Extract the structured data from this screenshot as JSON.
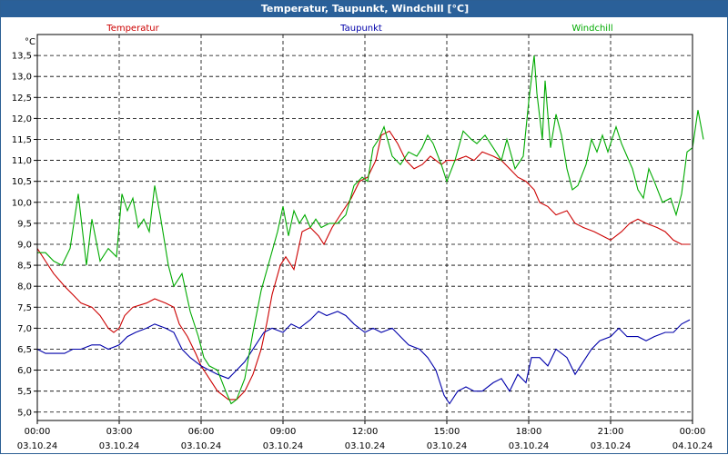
{
  "window": {
    "title": "Temperatur, Taupunkt, Windchill [°C]"
  },
  "colors": {
    "temperatur": "#cc0000",
    "taupunkt": "#0000aa",
    "windchill": "#00aa00",
    "titlebar": "#2a6099"
  },
  "chart_data": {
    "type": "line",
    "title": "Temperatur, Taupunkt, Windchill [°C]",
    "ylabel": "°C",
    "xlim": [
      0,
      24
    ],
    "ylim": [
      4.8,
      14.0
    ],
    "grid": true,
    "legend_position": "top",
    "y_ticks": [
      {
        "v": 5.0,
        "label": "5,0"
      },
      {
        "v": 5.5,
        "label": "5,5"
      },
      {
        "v": 6.0,
        "label": "6,0"
      },
      {
        "v": 6.5,
        "label": "6,5"
      },
      {
        "v": 7.0,
        "label": "7,0"
      },
      {
        "v": 7.5,
        "label": "7,5"
      },
      {
        "v": 8.0,
        "label": "8,0"
      },
      {
        "v": 8.5,
        "label": "8,5"
      },
      {
        "v": 9.0,
        "label": "9,0"
      },
      {
        "v": 9.5,
        "label": "9,5"
      },
      {
        "v": 10.0,
        "label": "10,0"
      },
      {
        "v": 10.5,
        "label": "10,5"
      },
      {
        "v": 11.0,
        "label": "11,0"
      },
      {
        "v": 11.5,
        "label": "11,5"
      },
      {
        "v": 12.0,
        "label": "12,0"
      },
      {
        "v": 12.5,
        "label": "12,5"
      },
      {
        "v": 13.0,
        "label": "13,0"
      },
      {
        "v": 13.5,
        "label": "13,5"
      }
    ],
    "x_ticks": [
      {
        "v": 0,
        "time": "00:00",
        "date": "03.10.24"
      },
      {
        "v": 3,
        "time": "03:00",
        "date": "03.10.24"
      },
      {
        "v": 6,
        "time": "06:00",
        "date": "03.10.24"
      },
      {
        "v": 9,
        "time": "09:00",
        "date": "03.10.24"
      },
      {
        "v": 12,
        "time": "12:00",
        "date": "03.10.24"
      },
      {
        "v": 15,
        "time": "15:00",
        "date": "03.10.24"
      },
      {
        "v": 18,
        "time": "18:00",
        "date": "03.10.24"
      },
      {
        "v": 21,
        "time": "21:00",
        "date": "03.10.24"
      },
      {
        "v": 24,
        "time": "00:00",
        "date": "04.10.24"
      }
    ],
    "series": [
      {
        "name": "Temperatur",
        "color": "#cc0000",
        "points": [
          [
            0,
            8.9
          ],
          [
            0.3,
            8.6
          ],
          [
            0.6,
            8.3
          ],
          [
            1.0,
            8.0
          ],
          [
            1.3,
            7.8
          ],
          [
            1.6,
            7.6
          ],
          [
            2.0,
            7.5
          ],
          [
            2.3,
            7.3
          ],
          [
            2.6,
            7.0
          ],
          [
            2.8,
            6.9
          ],
          [
            3.0,
            7.0
          ],
          [
            3.2,
            7.3
          ],
          [
            3.5,
            7.5
          ],
          [
            4.0,
            7.6
          ],
          [
            4.3,
            7.7
          ],
          [
            4.7,
            7.6
          ],
          [
            5.0,
            7.5
          ],
          [
            5.2,
            7.1
          ],
          [
            5.5,
            6.8
          ],
          [
            5.8,
            6.4
          ],
          [
            6.0,
            6.1
          ],
          [
            6.3,
            5.8
          ],
          [
            6.6,
            5.5
          ],
          [
            7.0,
            5.3
          ],
          [
            7.3,
            5.3
          ],
          [
            7.6,
            5.5
          ],
          [
            7.9,
            5.9
          ],
          [
            8.2,
            6.5
          ],
          [
            8.4,
            7.1
          ],
          [
            8.6,
            7.8
          ],
          [
            8.9,
            8.5
          ],
          [
            9.1,
            8.7
          ],
          [
            9.4,
            8.4
          ],
          [
            9.7,
            9.3
          ],
          [
            10.0,
            9.4
          ],
          [
            10.3,
            9.2
          ],
          [
            10.5,
            9.0
          ],
          [
            10.8,
            9.4
          ],
          [
            11.2,
            9.8
          ],
          [
            11.5,
            10.1
          ],
          [
            11.8,
            10.5
          ],
          [
            12.1,
            10.6
          ],
          [
            12.4,
            11.0
          ],
          [
            12.6,
            11.6
          ],
          [
            12.9,
            11.7
          ],
          [
            13.2,
            11.4
          ],
          [
            13.5,
            11.0
          ],
          [
            13.8,
            10.8
          ],
          [
            14.1,
            10.9
          ],
          [
            14.4,
            11.1
          ],
          [
            14.8,
            10.9
          ],
          [
            15.0,
            11.0
          ],
          [
            15.3,
            11.0
          ],
          [
            15.7,
            11.1
          ],
          [
            16.0,
            11.0
          ],
          [
            16.3,
            11.2
          ],
          [
            16.7,
            11.1
          ],
          [
            17.0,
            11.0
          ],
          [
            17.3,
            10.8
          ],
          [
            17.6,
            10.6
          ],
          [
            17.9,
            10.5
          ],
          [
            18.2,
            10.3
          ],
          [
            18.4,
            10.0
          ],
          [
            18.7,
            9.9
          ],
          [
            19.0,
            9.7
          ],
          [
            19.4,
            9.8
          ],
          [
            19.7,
            9.5
          ],
          [
            20.0,
            9.4
          ],
          [
            20.4,
            9.3
          ],
          [
            20.7,
            9.2
          ],
          [
            21.0,
            9.1
          ],
          [
            21.4,
            9.3
          ],
          [
            21.7,
            9.5
          ],
          [
            22.0,
            9.6
          ],
          [
            22.3,
            9.5
          ],
          [
            22.7,
            9.4
          ],
          [
            23.0,
            9.3
          ],
          [
            23.3,
            9.1
          ],
          [
            23.6,
            9.0
          ],
          [
            23.9,
            9.0
          ]
        ]
      },
      {
        "name": "Taupunkt",
        "color": "#0000aa",
        "points": [
          [
            0,
            6.5
          ],
          [
            0.3,
            6.4
          ],
          [
            0.6,
            6.4
          ],
          [
            1.0,
            6.4
          ],
          [
            1.3,
            6.5
          ],
          [
            1.6,
            6.5
          ],
          [
            2.0,
            6.6
          ],
          [
            2.3,
            6.6
          ],
          [
            2.6,
            6.5
          ],
          [
            3.0,
            6.6
          ],
          [
            3.3,
            6.8
          ],
          [
            3.6,
            6.9
          ],
          [
            4.0,
            7.0
          ],
          [
            4.3,
            7.1
          ],
          [
            4.7,
            7.0
          ],
          [
            5.0,
            6.9
          ],
          [
            5.3,
            6.5
          ],
          [
            5.6,
            6.3
          ],
          [
            6.0,
            6.1
          ],
          [
            6.3,
            6.0
          ],
          [
            6.6,
            5.9
          ],
          [
            7.0,
            5.8
          ],
          [
            7.3,
            6.0
          ],
          [
            7.6,
            6.2
          ],
          [
            8.0,
            6.6
          ],
          [
            8.3,
            6.9
          ],
          [
            8.6,
            7.0
          ],
          [
            9.0,
            6.9
          ],
          [
            9.3,
            7.1
          ],
          [
            9.6,
            7.0
          ],
          [
            10.0,
            7.2
          ],
          [
            10.3,
            7.4
          ],
          [
            10.6,
            7.3
          ],
          [
            11.0,
            7.4
          ],
          [
            11.3,
            7.3
          ],
          [
            11.6,
            7.1
          ],
          [
            12.0,
            6.9
          ],
          [
            12.3,
            7.0
          ],
          [
            12.6,
            6.9
          ],
          [
            13.0,
            7.0
          ],
          [
            13.3,
            6.8
          ],
          [
            13.6,
            6.6
          ],
          [
            14.0,
            6.5
          ],
          [
            14.3,
            6.3
          ],
          [
            14.6,
            6.0
          ],
          [
            14.9,
            5.4
          ],
          [
            15.1,
            5.2
          ],
          [
            15.4,
            5.5
          ],
          [
            15.7,
            5.6
          ],
          [
            16.0,
            5.5
          ],
          [
            16.3,
            5.5
          ],
          [
            16.7,
            5.7
          ],
          [
            17.0,
            5.8
          ],
          [
            17.3,
            5.5
          ],
          [
            17.6,
            5.9
          ],
          [
            17.9,
            5.7
          ],
          [
            18.1,
            6.3
          ],
          [
            18.4,
            6.3
          ],
          [
            18.7,
            6.1
          ],
          [
            19.0,
            6.5
          ],
          [
            19.4,
            6.3
          ],
          [
            19.7,
            5.9
          ],
          [
            20.0,
            6.2
          ],
          [
            20.3,
            6.5
          ],
          [
            20.6,
            6.7
          ],
          [
            21.0,
            6.8
          ],
          [
            21.3,
            7.0
          ],
          [
            21.6,
            6.8
          ],
          [
            22.0,
            6.8
          ],
          [
            22.3,
            6.7
          ],
          [
            22.6,
            6.8
          ],
          [
            23.0,
            6.9
          ],
          [
            23.3,
            6.9
          ],
          [
            23.6,
            7.1
          ],
          [
            23.9,
            7.2
          ]
        ]
      },
      {
        "name": "Windchill",
        "color": "#00aa00",
        "points": [
          [
            0,
            8.8
          ],
          [
            0.3,
            8.8
          ],
          [
            0.6,
            8.6
          ],
          [
            0.9,
            8.5
          ],
          [
            1.2,
            8.9
          ],
          [
            1.5,
            10.2
          ],
          [
            1.8,
            8.5
          ],
          [
            2.0,
            9.6
          ],
          [
            2.3,
            8.6
          ],
          [
            2.6,
            8.9
          ],
          [
            2.9,
            8.7
          ],
          [
            3.1,
            10.2
          ],
          [
            3.3,
            9.8
          ],
          [
            3.5,
            10.1
          ],
          [
            3.7,
            9.4
          ],
          [
            3.9,
            9.6
          ],
          [
            4.1,
            9.3
          ],
          [
            4.3,
            10.4
          ],
          [
            4.5,
            9.7
          ],
          [
            4.8,
            8.5
          ],
          [
            5.0,
            8.0
          ],
          [
            5.3,
            8.3
          ],
          [
            5.6,
            7.4
          ],
          [
            5.9,
            6.8
          ],
          [
            6.1,
            6.3
          ],
          [
            6.3,
            6.1
          ],
          [
            6.6,
            6.0
          ],
          [
            6.9,
            5.5
          ],
          [
            7.1,
            5.2
          ],
          [
            7.3,
            5.3
          ],
          [
            7.6,
            5.8
          ],
          [
            7.9,
            6.9
          ],
          [
            8.2,
            7.9
          ],
          [
            8.5,
            8.6
          ],
          [
            8.8,
            9.3
          ],
          [
            9.0,
            9.9
          ],
          [
            9.2,
            9.2
          ],
          [
            9.4,
            9.8
          ],
          [
            9.6,
            9.5
          ],
          [
            9.8,
            9.7
          ],
          [
            10.0,
            9.4
          ],
          [
            10.2,
            9.6
          ],
          [
            10.4,
            9.4
          ],
          [
            10.7,
            9.5
          ],
          [
            11.0,
            9.5
          ],
          [
            11.3,
            9.7
          ],
          [
            11.6,
            10.4
          ],
          [
            11.9,
            10.6
          ],
          [
            12.1,
            10.5
          ],
          [
            12.3,
            11.3
          ],
          [
            12.5,
            11.5
          ],
          [
            12.7,
            11.8
          ],
          [
            13.0,
            11.1
          ],
          [
            13.3,
            10.9
          ],
          [
            13.6,
            11.2
          ],
          [
            13.9,
            11.1
          ],
          [
            14.1,
            11.3
          ],
          [
            14.3,
            11.6
          ],
          [
            14.5,
            11.4
          ],
          [
            14.8,
            10.9
          ],
          [
            15.0,
            10.5
          ],
          [
            15.3,
            11.0
          ],
          [
            15.6,
            11.7
          ],
          [
            15.9,
            11.5
          ],
          [
            16.1,
            11.4
          ],
          [
            16.4,
            11.6
          ],
          [
            16.7,
            11.3
          ],
          [
            17.0,
            11.0
          ],
          [
            17.2,
            11.5
          ],
          [
            17.5,
            10.8
          ],
          [
            17.8,
            11.1
          ],
          [
            18.0,
            12.4
          ],
          [
            18.2,
            13.5
          ],
          [
            18.3,
            12.6
          ],
          [
            18.5,
            11.5
          ],
          [
            18.6,
            12.9
          ],
          [
            18.8,
            11.3
          ],
          [
            19.0,
            12.1
          ],
          [
            19.2,
            11.6
          ],
          [
            19.4,
            10.8
          ],
          [
            19.6,
            10.3
          ],
          [
            19.8,
            10.4
          ],
          [
            20.1,
            10.9
          ],
          [
            20.3,
            11.5
          ],
          [
            20.5,
            11.2
          ],
          [
            20.7,
            11.6
          ],
          [
            20.9,
            11.2
          ],
          [
            21.2,
            11.8
          ],
          [
            21.4,
            11.4
          ],
          [
            21.6,
            11.1
          ],
          [
            21.8,
            10.8
          ],
          [
            22.0,
            10.3
          ],
          [
            22.2,
            10.1
          ],
          [
            22.4,
            10.8
          ],
          [
            22.6,
            10.5
          ],
          [
            22.9,
            10.0
          ],
          [
            23.2,
            10.1
          ],
          [
            23.4,
            9.7
          ],
          [
            23.6,
            10.2
          ],
          [
            23.8,
            11.2
          ],
          [
            24.0,
            11.3
          ],
          [
            24.2,
            12.2
          ],
          [
            24.4,
            11.5
          ]
        ]
      }
    ]
  }
}
